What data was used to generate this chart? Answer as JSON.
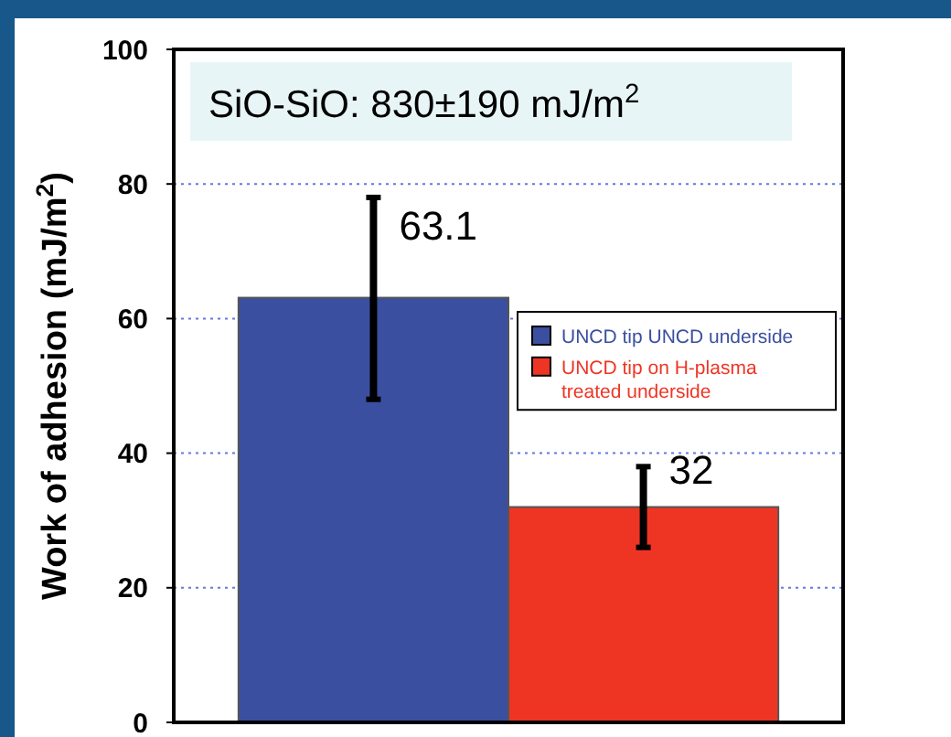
{
  "chart_data": {
    "type": "bar",
    "ylabel": "Work of adhesion (mJ/m$^{2}$)",
    "categories": [
      null,
      null
    ],
    "series": [
      {
        "name": "UNCD tip UNCD underside",
        "color": "#3a4fa0",
        "values": [
          63.1,
          null
        ],
        "errors": [
          [
            48,
            78
          ],
          null
        ]
      },
      {
        "name": "UNCD tip on H-plasma treated underside",
        "color": "#ee3524",
        "values": [
          null,
          32
        ],
        "errors": [
          null,
          [
            26,
            38
          ]
        ]
      }
    ],
    "ylim": [
      0,
      100
    ],
    "yticks": [
      0,
      20,
      40,
      60,
      80,
      100
    ],
    "grid": "y",
    "data_labels": true,
    "legend": "right",
    "annotations": [
      "SiO-SiO: 830±190 mJ/m$^{2}$"
    ]
  }
}
